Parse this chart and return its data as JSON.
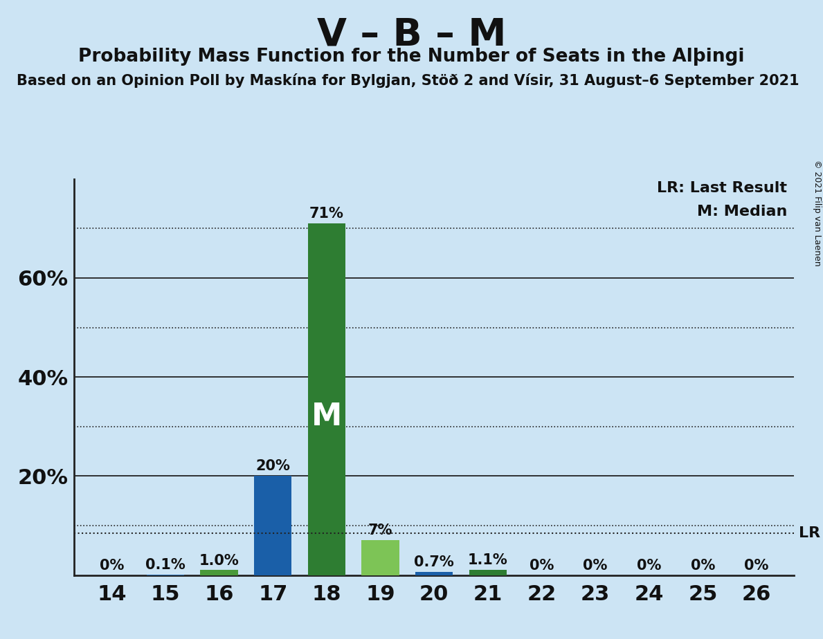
{
  "title": "V – B – M",
  "subtitle": "Probability Mass Function for the Number of Seats in the Alþingi",
  "source_line": "Based on an Opinion Poll by Maskína for Bylgjan, Stöð 2 and Vísir, 31 August–6 September 2021",
  "copyright": "© 2021 Filip van Laenen",
  "seats": [
    14,
    15,
    16,
    17,
    18,
    19,
    20,
    21,
    22,
    23,
    24,
    25,
    26
  ],
  "probabilities": [
    0.0,
    0.1,
    1.0,
    20.0,
    71.0,
    7.0,
    0.7,
    1.1,
    0.0,
    0.0,
    0.0,
    0.0,
    0.0
  ],
  "bar_labels": [
    "0%",
    "0.1%",
    "1.0%",
    "20%",
    "71%",
    "7%",
    "0.7%",
    "1.1%",
    "0%",
    "0%",
    "0%",
    "0%",
    "0%"
  ],
  "bar_colors": [
    "#2266aa",
    "#2266aa",
    "#4a9a3a",
    "#1a5fa8",
    "#2e7d32",
    "#7dc456",
    "#1a5fa8",
    "#2e7d32",
    "#2266aa",
    "#2266aa",
    "#2266aa",
    "#2266aa",
    "#2266aa"
  ],
  "median_seat": 18,
  "last_result_pct": 8.5,
  "lr_label": "LR",
  "lr_legend": "LR: Last Result",
  "m_legend": "M: Median",
  "bg_color": "#cce4f4",
  "ylim_max": 80,
  "grid_color": "#222222",
  "bar_width": 0.7
}
